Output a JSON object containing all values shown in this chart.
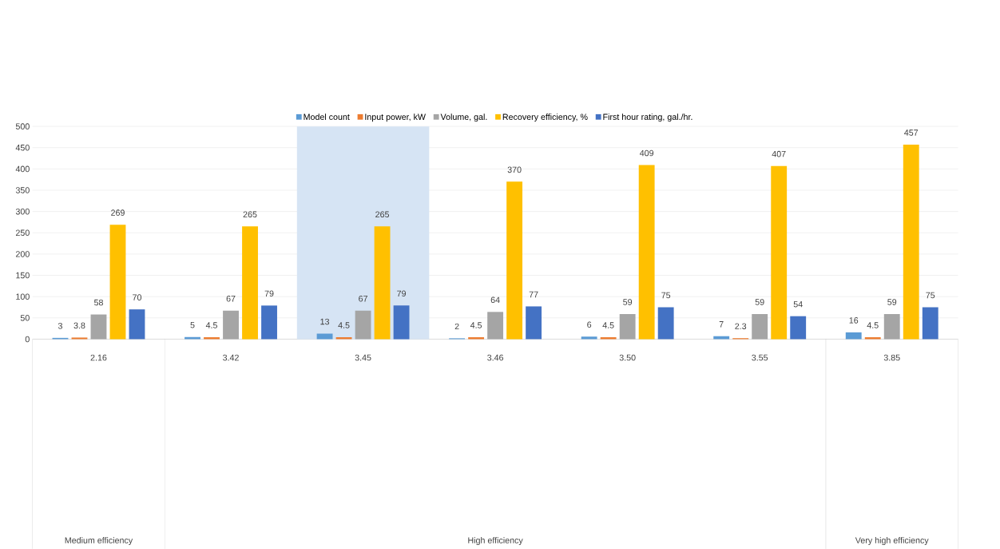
{
  "chart_data": {
    "type": "bar",
    "categories": [
      "2.16",
      "3.42",
      "3.45",
      "3.46",
      "3.50",
      "3.55",
      "3.85"
    ],
    "series": [
      {
        "name": "Model count",
        "color": "#5b9bd5",
        "values": [
          3,
          5,
          13,
          2,
          6,
          7,
          16
        ]
      },
      {
        "name": "Input power, kW",
        "color": "#ed7d31",
        "values": [
          3.8,
          4.5,
          4.5,
          4.5,
          4.5,
          2.3,
          4.5
        ]
      },
      {
        "name": "Volume, gal.",
        "color": "#a5a5a5",
        "values": [
          58,
          67,
          67,
          64,
          59,
          59,
          59
        ]
      },
      {
        "name": "Recovery efficiency, %",
        "color": "#ffc000",
        "values": [
          269,
          265,
          265,
          370,
          409,
          407,
          457
        ]
      },
      {
        "name": "First hour rating, gal./hr.",
        "color": "#4472c4",
        "values": [
          70,
          79,
          79,
          77,
          75,
          54,
          75
        ]
      }
    ],
    "ylim": [
      0,
      500
    ],
    "yticks": [
      0,
      50,
      100,
      150,
      200,
      250,
      300,
      350,
      400,
      450,
      500
    ],
    "grid": "y",
    "legend": "top",
    "data_labels": true,
    "bands": [
      {
        "axis": "x",
        "from": "3.45",
        "to": "3.45",
        "color": "#d6e4f4"
      }
    ],
    "annotations": [
      "Medium efficiency",
      "High efficiency",
      "Very high efficiency"
    ]
  }
}
